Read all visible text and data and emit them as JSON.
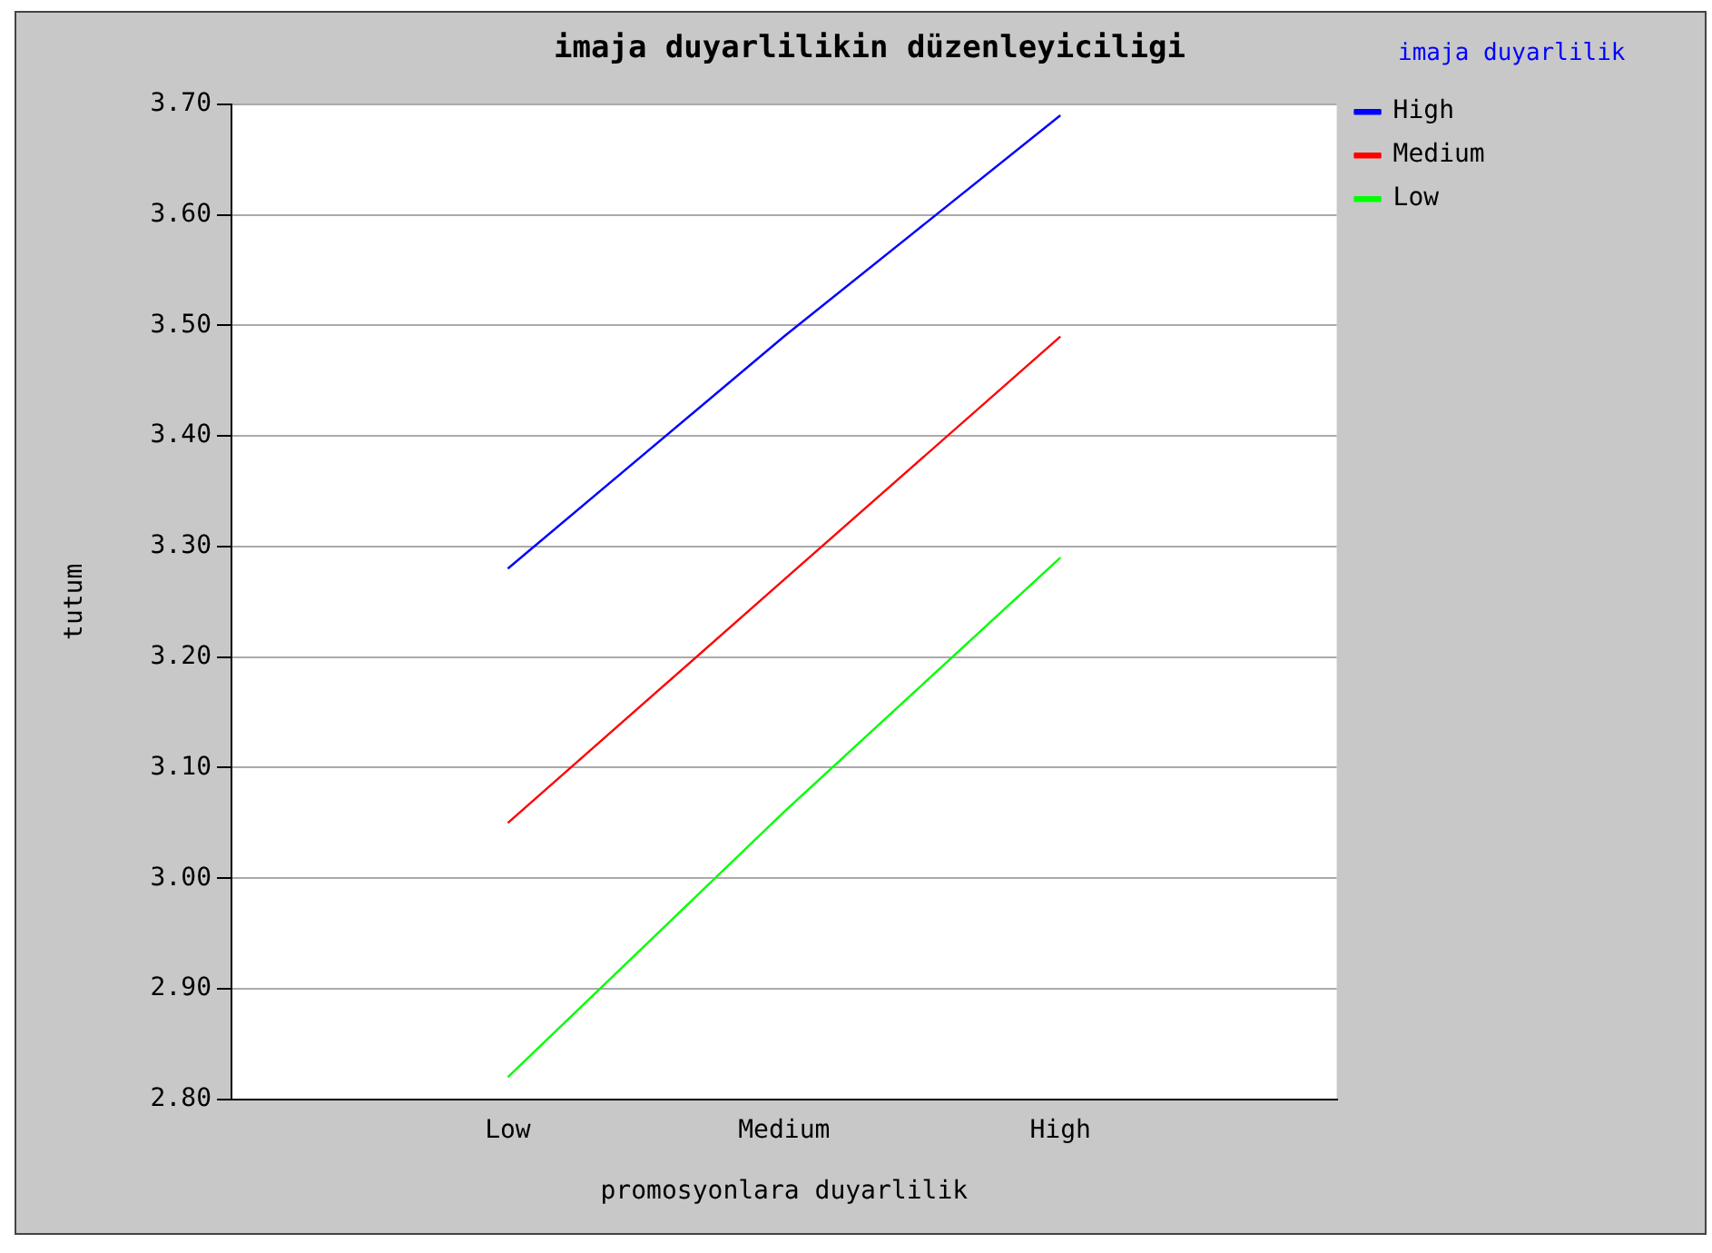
{
  "chart_data": {
    "type": "line",
    "title": "imaja duyarlilikin düzenleyiciligi",
    "xlabel": "promosyonlara duyarlilik",
    "ylabel": "tutum",
    "legend_title": "imaja duyarlilik",
    "categories": [
      null,
      "Low",
      "Medium",
      "High",
      null
    ],
    "series": [
      {
        "name": "High",
        "color": "#0000ff",
        "values": [
          null,
          3.28,
          3.49,
          3.69,
          null
        ]
      },
      {
        "name": "Medium",
        "color": "#ff0000",
        "values": [
          null,
          3.05,
          3.27,
          3.49,
          null
        ]
      },
      {
        "name": "Low",
        "color": "#00ff00",
        "values": [
          null,
          2.82,
          3.06,
          3.29,
          null
        ]
      }
    ],
    "ylim": [
      2.8,
      3.7
    ],
    "yticks": [
      {
        "value": 2.8,
        "label": "2.80"
      },
      {
        "value": 2.9,
        "label": "2.90"
      },
      {
        "value": 3.0,
        "label": "3.00"
      },
      {
        "value": 3.1,
        "label": "3.10"
      },
      {
        "value": 3.2,
        "label": "3.20"
      },
      {
        "value": 3.3,
        "label": "3.30"
      },
      {
        "value": 3.4,
        "label": "3.40"
      },
      {
        "value": 3.5,
        "label": "3.50"
      },
      {
        "value": 3.6,
        "label": "3.60"
      },
      {
        "value": 3.7,
        "label": "3.70"
      }
    ],
    "grid": "y",
    "legend": "top right",
    "marker": "none",
    "line_style": "solid"
  }
}
